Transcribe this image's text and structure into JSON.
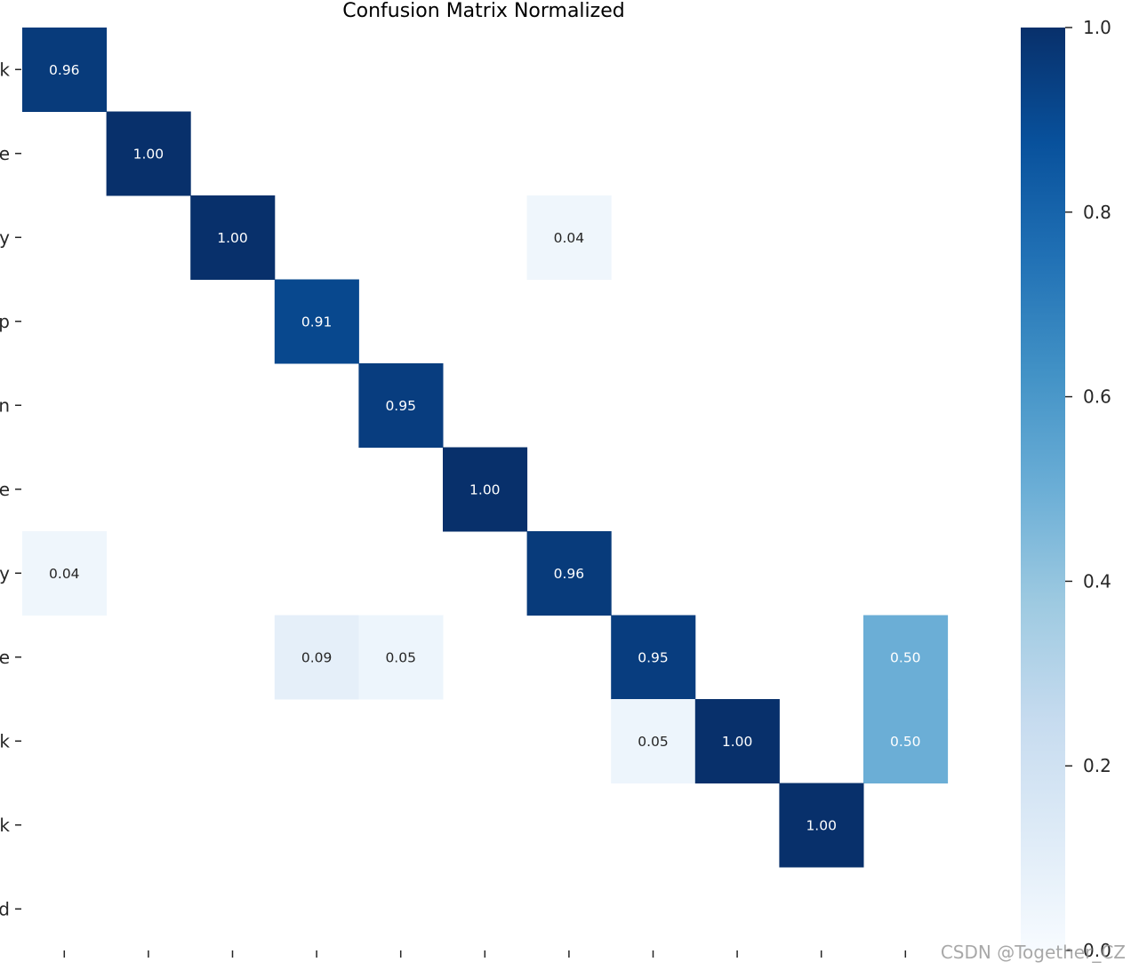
{
  "chart_data": {
    "type": "heatmap",
    "title": "Confusion Matrix Normalized",
    "rows": 11,
    "cols": 11,
    "y_tick_labels": [
      "k",
      "e",
      "y",
      "p",
      "n",
      "e",
      "y",
      "e",
      "k",
      "k",
      "d"
    ],
    "x_tick_labels": [
      "",
      "",
      "",
      "",
      "",
      "",
      "",
      "",
      "",
      "",
      ""
    ],
    "cells": [
      {
        "row": 0,
        "col": 0,
        "value": 0.96,
        "label": "0.96"
      },
      {
        "row": 1,
        "col": 1,
        "value": 1.0,
        "label": "1.00"
      },
      {
        "row": 2,
        "col": 2,
        "value": 1.0,
        "label": "1.00"
      },
      {
        "row": 2,
        "col": 6,
        "value": 0.04,
        "label": "0.04"
      },
      {
        "row": 3,
        "col": 3,
        "value": 0.91,
        "label": "0.91"
      },
      {
        "row": 4,
        "col": 4,
        "value": 0.95,
        "label": "0.95"
      },
      {
        "row": 5,
        "col": 5,
        "value": 1.0,
        "label": "1.00"
      },
      {
        "row": 6,
        "col": 0,
        "value": 0.04,
        "label": "0.04"
      },
      {
        "row": 6,
        "col": 6,
        "value": 0.96,
        "label": "0.96"
      },
      {
        "row": 7,
        "col": 3,
        "value": 0.09,
        "label": "0.09"
      },
      {
        "row": 7,
        "col": 4,
        "value": 0.05,
        "label": "0.05"
      },
      {
        "row": 7,
        "col": 7,
        "value": 0.95,
        "label": "0.95"
      },
      {
        "row": 7,
        "col": 10,
        "value": 0.5,
        "label": "0.50"
      },
      {
        "row": 8,
        "col": 7,
        "value": 0.05,
        "label": "0.05"
      },
      {
        "row": 8,
        "col": 8,
        "value": 1.0,
        "label": "1.00"
      },
      {
        "row": 8,
        "col": 10,
        "value": 0.5,
        "label": "0.50"
      },
      {
        "row": 9,
        "col": 9,
        "value": 1.0,
        "label": "1.00"
      }
    ],
    "colormap": "Blues",
    "colorbar": {
      "range": [
        0.0,
        1.0
      ],
      "ticks": [
        1.0,
        0.8,
        0.6,
        0.4,
        0.2,
        0.0
      ],
      "tick_labels": [
        "1.0",
        "0.8",
        "0.6",
        "0.4",
        "0.2",
        "0.0"
      ]
    },
    "grid": false
  },
  "watermark": "CSDN @Together_CZ"
}
